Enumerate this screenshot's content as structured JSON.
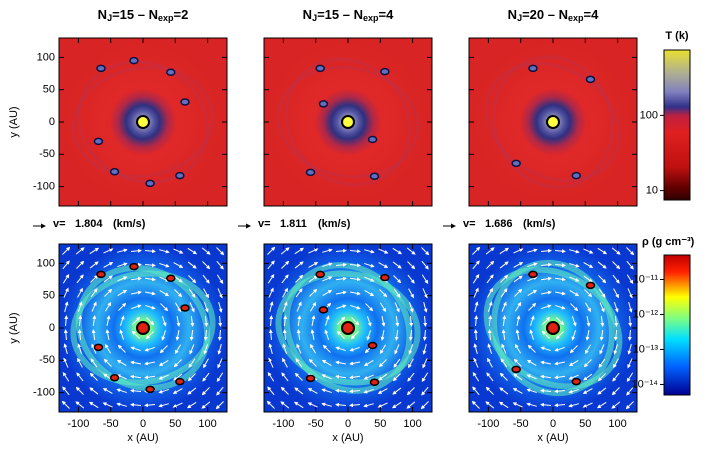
{
  "panels": [
    {
      "title": [
        "N",
        "J",
        "=15 – N",
        "exp",
        "=2"
      ],
      "velocity": 1.804,
      "clumps": [
        [
          -65,
          83
        ],
        [
          -14,
          95
        ],
        [
          43,
          77
        ],
        [
          65,
          31
        ],
        [
          -69,
          -30
        ],
        [
          -44,
          -77
        ],
        [
          11,
          -95
        ],
        [
          57,
          -83
        ]
      ]
    },
    {
      "title": [
        "N",
        "J",
        "=15 – N",
        "exp",
        "=4"
      ],
      "velocity": 1.811,
      "clumps": [
        [
          -43,
          83
        ],
        [
          57,
          78
        ],
        [
          -38,
          28
        ],
        [
          38,
          -27
        ],
        [
          -58,
          -78
        ],
        [
          41,
          -84
        ]
      ]
    },
    {
      "title": [
        "N",
        "J",
        "=20 – N",
        "exp",
        "=4"
      ],
      "velocity": 1.686,
      "clumps": [
        [
          -31,
          83
        ],
        [
          58,
          66
        ],
        [
          -57,
          -64
        ],
        [
          36,
          -83
        ]
      ]
    }
  ],
  "velocity_prefix": "v=",
  "velocity_unit": "(km/s)",
  "xlabel": "x (AU)",
  "ylabel": "y (AU)",
  "xlim": [
    -130,
    130
  ],
  "ylim": [
    -130,
    130
  ],
  "xticks": [
    -100,
    -50,
    0,
    50,
    100
  ],
  "yticks": [
    -100,
    -50,
    0,
    50,
    100
  ],
  "temperature_colorbar": {
    "title": "T (k)",
    "log": true,
    "lim": [
      7.5,
      740
    ],
    "ticks": [
      10,
      100
    ]
  },
  "density_colorbar": {
    "title": "ρ (g cm⁻³)",
    "log": true,
    "lim": [
      5e-15,
      5e-11
    ],
    "ticks": [
      {
        "value": 1e-11,
        "label": "10⁻¹¹"
      },
      {
        "value": 1e-12,
        "label": "10⁻¹²"
      },
      {
        "value": 1e-13,
        "label": "10⁻¹³"
      },
      {
        "value": 1e-14,
        "label": "10⁻¹⁴"
      }
    ]
  }
}
